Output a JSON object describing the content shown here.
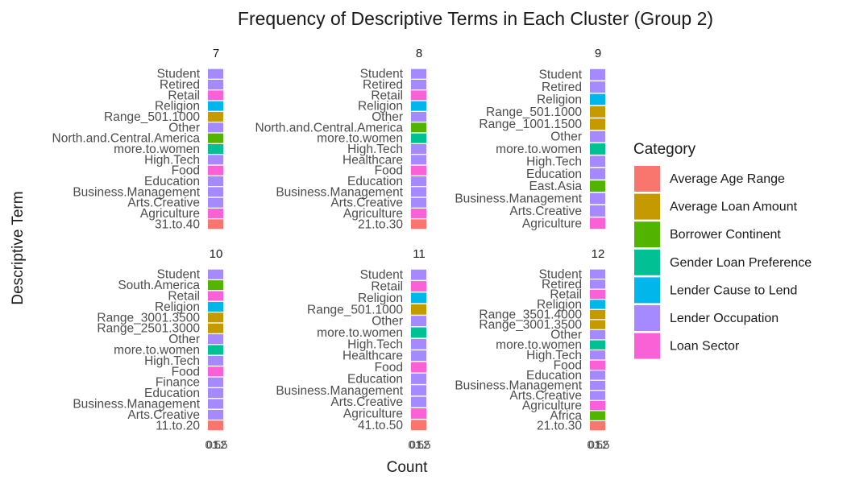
{
  "chart_data": {
    "type": "bar",
    "orientation": "horizontal",
    "facet_layout": "2x3",
    "title": "Frequency of Descriptive Terms in Each Cluster (Group 2)",
    "xlabel": "Count",
    "ylabel": "Descriptive Term",
    "x_tick_labels": [
      "0",
      "0.5",
      "1",
      "1.5",
      "2"
    ],
    "xlim": [
      0,
      1
    ],
    "legend": {
      "title": "Category",
      "position": "right",
      "entries": [
        {
          "label": "Average Age Range",
          "color": "#F8766D"
        },
        {
          "label": "Average Loan Amount",
          "color": "#C49A00"
        },
        {
          "label": "Borrower Continent",
          "color": "#53B400"
        },
        {
          "label": "Gender Loan Preference",
          "color": "#00C094"
        },
        {
          "label": "Lender Cause to Lend",
          "color": "#00B6EB"
        },
        {
          "label": "Lender Occupation",
          "color": "#A58AFF"
        },
        {
          "label": "Loan Sector",
          "color": "#FB61D7"
        }
      ]
    },
    "panels": [
      {
        "title": "7",
        "terms": [
          {
            "term": "Student",
            "category": "Lender Occupation",
            "count": 1
          },
          {
            "term": "Retired",
            "category": "Lender Occupation",
            "count": 1
          },
          {
            "term": "Retail",
            "category": "Loan Sector",
            "count": 1
          },
          {
            "term": "Religion",
            "category": "Lender Cause to Lend",
            "count": 1
          },
          {
            "term": "Range_501.1000",
            "category": "Average Loan Amount",
            "count": 1
          },
          {
            "term": "Other",
            "category": "Lender Occupation",
            "count": 1
          },
          {
            "term": "North.and.Central.America",
            "category": "Borrower Continent",
            "count": 1
          },
          {
            "term": "more.to.women",
            "category": "Gender Loan Preference",
            "count": 1
          },
          {
            "term": "High.Tech",
            "category": "Lender Occupation",
            "count": 1
          },
          {
            "term": "Food",
            "category": "Loan Sector",
            "count": 1
          },
          {
            "term": "Education",
            "category": "Lender Occupation",
            "count": 1
          },
          {
            "term": "Business.Management",
            "category": "Lender Occupation",
            "count": 1
          },
          {
            "term": "Arts.Creative",
            "category": "Lender Occupation",
            "count": 1
          },
          {
            "term": "Agriculture",
            "category": "Loan Sector",
            "count": 1
          },
          {
            "term": "31.to.40",
            "category": "Average Age Range",
            "count": 1
          }
        ]
      },
      {
        "title": "8",
        "terms": [
          {
            "term": "Student",
            "category": "Lender Occupation",
            "count": 1
          },
          {
            "term": "Retired",
            "category": "Lender Occupation",
            "count": 1
          },
          {
            "term": "Retail",
            "category": "Loan Sector",
            "count": 1
          },
          {
            "term": "Religion",
            "category": "Lender Cause to Lend",
            "count": 1
          },
          {
            "term": "Other",
            "category": "Lender Occupation",
            "count": 1
          },
          {
            "term": "North.and.Central.America",
            "category": "Borrower Continent",
            "count": 1
          },
          {
            "term": "more.to.women",
            "category": "Gender Loan Preference",
            "count": 1
          },
          {
            "term": "High.Tech",
            "category": "Lender Occupation",
            "count": 1
          },
          {
            "term": "Healthcare",
            "category": "Lender Occupation",
            "count": 1
          },
          {
            "term": "Food",
            "category": "Loan Sector",
            "count": 1
          },
          {
            "term": "Education",
            "category": "Lender Occupation",
            "count": 1
          },
          {
            "term": "Business.Management",
            "category": "Lender Occupation",
            "count": 1
          },
          {
            "term": "Arts.Creative",
            "category": "Lender Occupation",
            "count": 1
          },
          {
            "term": "Agriculture",
            "category": "Loan Sector",
            "count": 1
          },
          {
            "term": "21.to.30",
            "category": "Average Age Range",
            "count": 1
          }
        ]
      },
      {
        "title": "9",
        "terms": [
          {
            "term": "Student",
            "category": "Lender Occupation",
            "count": 1
          },
          {
            "term": "Retired",
            "category": "Lender Occupation",
            "count": 1
          },
          {
            "term": "Religion",
            "category": "Lender Cause to Lend",
            "count": 1
          },
          {
            "term": "Range_501.1000",
            "category": "Average Loan Amount",
            "count": 1
          },
          {
            "term": "Range_1001.1500",
            "category": "Average Loan Amount",
            "count": 1
          },
          {
            "term": "Other",
            "category": "Lender Occupation",
            "count": 1
          },
          {
            "term": "more.to.women",
            "category": "Gender Loan Preference",
            "count": 1
          },
          {
            "term": "High.Tech",
            "category": "Lender Occupation",
            "count": 1
          },
          {
            "term": "Education",
            "category": "Lender Occupation",
            "count": 1
          },
          {
            "term": "East.Asia",
            "category": "Borrower Continent",
            "count": 1
          },
          {
            "term": "Business.Management",
            "category": "Lender Occupation",
            "count": 1
          },
          {
            "term": "Arts.Creative",
            "category": "Lender Occupation",
            "count": 1
          },
          {
            "term": "Agriculture",
            "category": "Loan Sector",
            "count": 1
          }
        ]
      },
      {
        "title": "10",
        "terms": [
          {
            "term": "Student",
            "category": "Lender Occupation",
            "count": 1
          },
          {
            "term": "South.America",
            "category": "Borrower Continent",
            "count": 1
          },
          {
            "term": "Retail",
            "category": "Loan Sector",
            "count": 1
          },
          {
            "term": "Religion",
            "category": "Lender Cause to Lend",
            "count": 1
          },
          {
            "term": "Range_3001.3500",
            "category": "Average Loan Amount",
            "count": 1
          },
          {
            "term": "Range_2501.3000",
            "category": "Average Loan Amount",
            "count": 1
          },
          {
            "term": "Other",
            "category": "Lender Occupation",
            "count": 1
          },
          {
            "term": "more.to.women",
            "category": "Gender Loan Preference",
            "count": 1
          },
          {
            "term": "High.Tech",
            "category": "Lender Occupation",
            "count": 1
          },
          {
            "term": "Food",
            "category": "Loan Sector",
            "count": 1
          },
          {
            "term": "Finance",
            "category": "Lender Occupation",
            "count": 1
          },
          {
            "term": "Education",
            "category": "Lender Occupation",
            "count": 1
          },
          {
            "term": "Business.Management",
            "category": "Lender Occupation",
            "count": 1
          },
          {
            "term": "Arts.Creative",
            "category": "Lender Occupation",
            "count": 1
          },
          {
            "term": "11.to.20",
            "category": "Average Age Range",
            "count": 1
          }
        ]
      },
      {
        "title": "11",
        "terms": [
          {
            "term": "Student",
            "category": "Lender Occupation",
            "count": 1
          },
          {
            "term": "Retail",
            "category": "Loan Sector",
            "count": 1
          },
          {
            "term": "Religion",
            "category": "Lender Cause to Lend",
            "count": 1
          },
          {
            "term": "Range_501.1000",
            "category": "Average Loan Amount",
            "count": 1
          },
          {
            "term": "Other",
            "category": "Lender Occupation",
            "count": 1
          },
          {
            "term": "more.to.women",
            "category": "Gender Loan Preference",
            "count": 1
          },
          {
            "term": "High.Tech",
            "category": "Lender Occupation",
            "count": 1
          },
          {
            "term": "Healthcare",
            "category": "Lender Occupation",
            "count": 1
          },
          {
            "term": "Food",
            "category": "Loan Sector",
            "count": 1
          },
          {
            "term": "Education",
            "category": "Lender Occupation",
            "count": 1
          },
          {
            "term": "Business.Management",
            "category": "Lender Occupation",
            "count": 1
          },
          {
            "term": "Arts.Creative",
            "category": "Lender Occupation",
            "count": 1
          },
          {
            "term": "Agriculture",
            "category": "Loan Sector",
            "count": 1
          },
          {
            "term": "41.to.50",
            "category": "Average Age Range",
            "count": 1
          }
        ]
      },
      {
        "title": "12",
        "terms": [
          {
            "term": "Student",
            "category": "Lender Occupation",
            "count": 1
          },
          {
            "term": "Retired",
            "category": "Lender Occupation",
            "count": 1
          },
          {
            "term": "Retail",
            "category": "Loan Sector",
            "count": 1
          },
          {
            "term": "Religion",
            "category": "Lender Cause to Lend",
            "count": 1
          },
          {
            "term": "Range_3501.4000",
            "category": "Average Loan Amount",
            "count": 1
          },
          {
            "term": "Range_3001.3500",
            "category": "Average Loan Amount",
            "count": 1
          },
          {
            "term": "Other",
            "category": "Lender Occupation",
            "count": 1
          },
          {
            "term": "more.to.women",
            "category": "Gender Loan Preference",
            "count": 1
          },
          {
            "term": "High.Tech",
            "category": "Lender Occupation",
            "count": 1
          },
          {
            "term": "Food",
            "category": "Loan Sector",
            "count": 1
          },
          {
            "term": "Education",
            "category": "Lender Occupation",
            "count": 1
          },
          {
            "term": "Business.Management",
            "category": "Lender Occupation",
            "count": 1
          },
          {
            "term": "Arts.Creative",
            "category": "Lender Occupation",
            "count": 1
          },
          {
            "term": "Agriculture",
            "category": "Loan Sector",
            "count": 1
          },
          {
            "term": "Africa",
            "category": "Borrower Continent",
            "count": 1
          },
          {
            "term": "21.to.30",
            "category": "Average Age Range",
            "count": 1
          }
        ]
      }
    ]
  }
}
